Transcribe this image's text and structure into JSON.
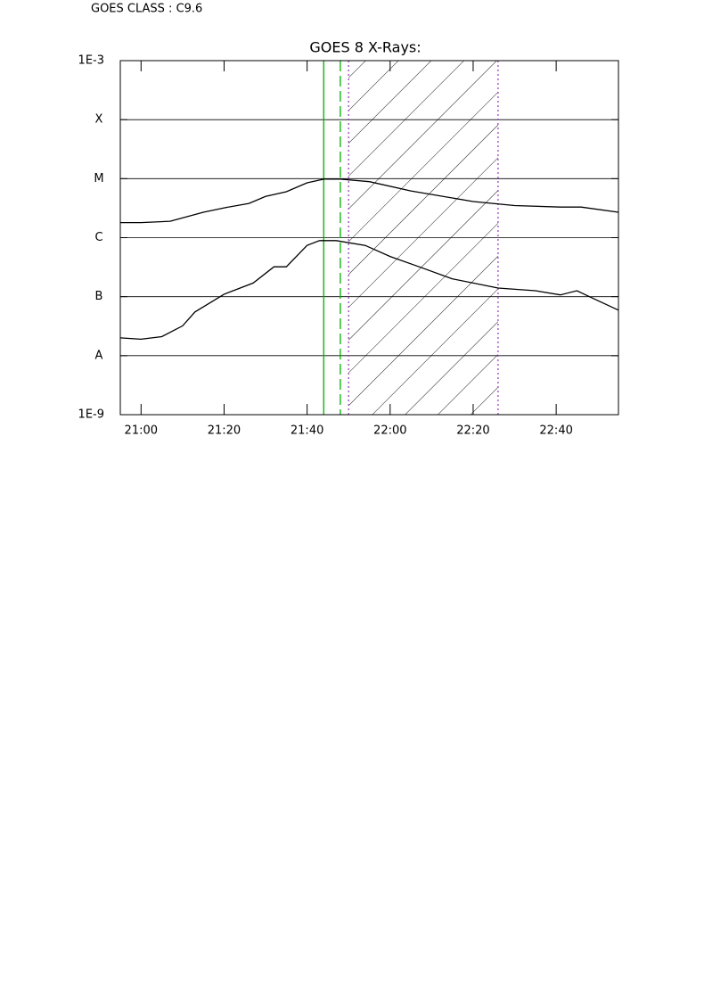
{
  "header": "GOES CLASS : C9.6",
  "chart_data": {
    "type": "line",
    "title": "GOES 8 X-Rays:",
    "xlim": [
      "20:55",
      "22:55"
    ],
    "xticks": [
      "21:00",
      "21:20",
      "21:40",
      "22:00",
      "22:20",
      "22:40"
    ],
    "ylim": [
      1e-09,
      0.001
    ],
    "log_y": true,
    "grid": true,
    "yticks": [
      {
        "value": 1e-09,
        "label": "1E-9"
      },
      {
        "value": 1e-08,
        "label": "A"
      },
      {
        "value": 1e-07,
        "label": "B"
      },
      {
        "value": 1e-06,
        "label": "C"
      },
      {
        "value": 1e-05,
        "label": "M"
      },
      {
        "value": 0.0001,
        "label": "X"
      },
      {
        "value": 0.001,
        "label": "1E-3"
      }
    ],
    "series": [
      {
        "color": "#000000",
        "x": [
          "20:55",
          "21:00",
          "21:07",
          "21:15",
          "21:20",
          "21:26",
          "21:30",
          "21:35",
          "21:40",
          "21:44",
          "21:48",
          "21:55",
          "22:05",
          "22:20",
          "22:30",
          "22:41",
          "22:46",
          "22:55"
        ],
        "values": [
          1.8e-06,
          1.8e-06,
          1.9e-06,
          2.7e-06,
          3.2e-06,
          3.8e-06,
          5e-06,
          6e-06,
          8.5e-06,
          9.8e-06,
          9.8e-06,
          8.9e-06,
          6.2e-06,
          4.1e-06,
          3.5e-06,
          3.3e-06,
          3.3e-06,
          2.7e-06
        ]
      },
      {
        "color": "#000000",
        "x": [
          "20:55",
          "21:00",
          "21:05",
          "21:10",
          "21:13",
          "21:20",
          "21:27",
          "21:32",
          "21:35",
          "21:40",
          "21:43",
          "21:47",
          "21:54",
          "22:00",
          "22:07",
          "22:15",
          "22:26",
          "22:35",
          "22:41",
          "22:45",
          "22:49",
          "22:55"
        ],
        "values": [
          2e-08,
          1.9e-08,
          2.1e-08,
          3.2e-08,
          5.5e-08,
          1.1e-07,
          1.7e-07,
          3.2e-07,
          3.2e-07,
          7.4e-07,
          8.9e-07,
          8.9e-07,
          7.4e-07,
          4.8e-07,
          3.2e-07,
          2e-07,
          1.4e-07,
          1.26e-07,
          1.07e-07,
          1.26e-07,
          9.3e-08,
          5.9e-08
        ]
      }
    ],
    "vlines": [
      {
        "x": "21:44",
        "color": "#00b000",
        "style": "solid"
      },
      {
        "x": "21:48",
        "color": "#00b000",
        "style": "dashed"
      },
      {
        "x": "21:50",
        "color": "#a040c0",
        "style": "dotted"
      },
      {
        "x": "22:26",
        "color": "#a040c0",
        "style": "dotted"
      }
    ],
    "shaded": [
      "21:50",
      "22:26"
    ]
  }
}
